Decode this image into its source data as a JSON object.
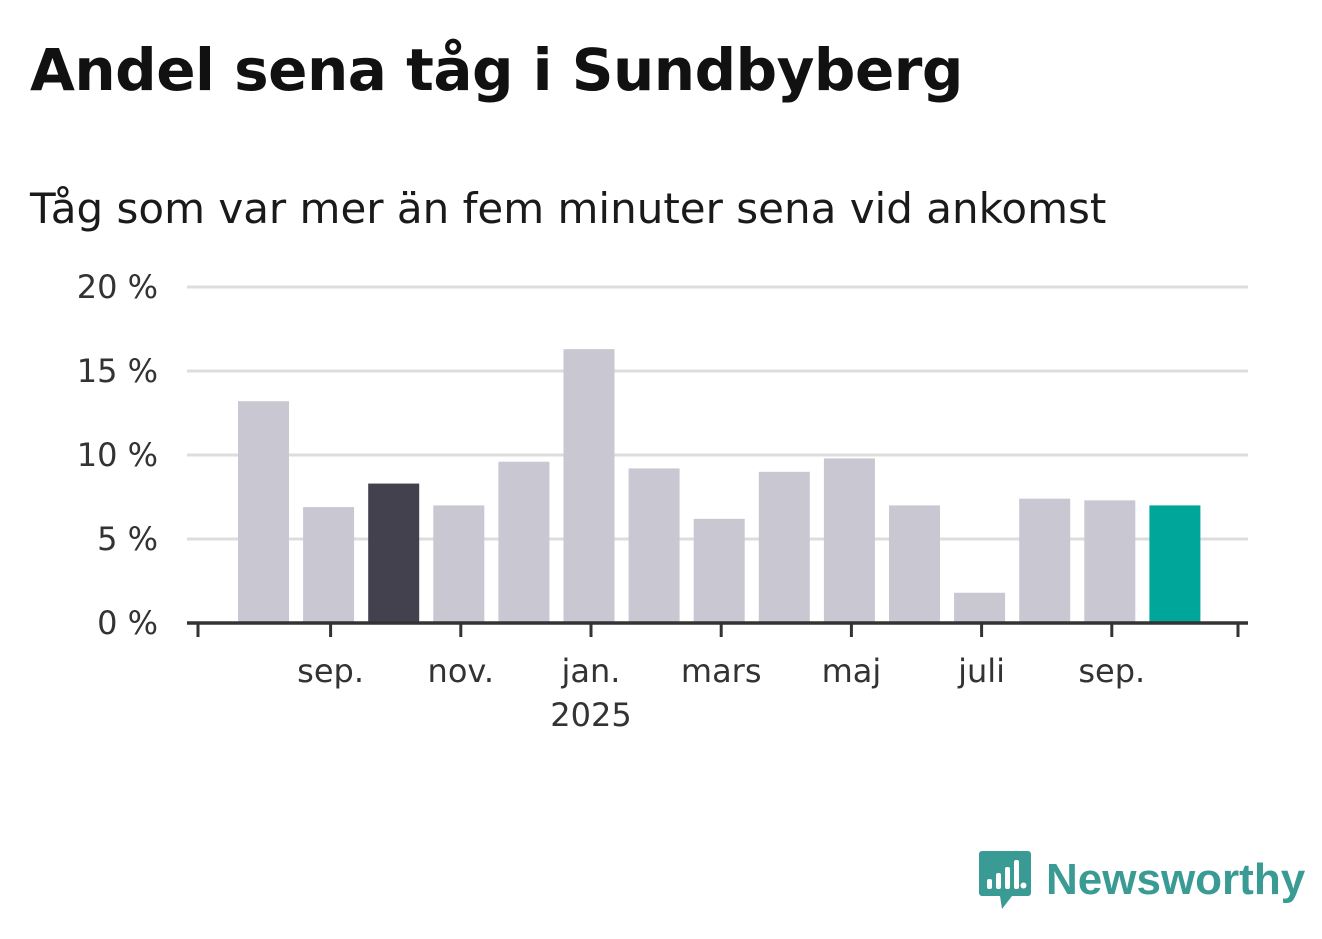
{
  "title": "Andel sena tåg i Sundbyberg",
  "subtitle": "Tåg som var mer än fem minuter sena vid ankomst",
  "brand": {
    "name": "Newsworthy",
    "icon": "newsworthy-logo-icon",
    "color": "#3a9a94"
  },
  "colors": {
    "default_bar": "#c8c7d2",
    "highlight_bar": "#42414d",
    "current_bar": "#00a69a",
    "grid": "#dddddd",
    "axis": "#333333"
  },
  "chart_data": {
    "type": "bar",
    "title": "Andel sena tåg i Sundbyberg",
    "subtitle": "Tåg som var mer än fem minuter sena vid ankomst",
    "categories": [
      "2024-08",
      "2024-09",
      "2024-10",
      "2024-11",
      "2024-12",
      "2025-01",
      "2025-02",
      "2025-03",
      "2025-04",
      "2025-05",
      "2025-06",
      "2025-07",
      "2025-08",
      "2025-09",
      "2025-10"
    ],
    "values": [
      13.2,
      6.9,
      8.3,
      7.0,
      9.6,
      16.3,
      9.2,
      6.2,
      9.0,
      9.8,
      7.0,
      1.8,
      7.4,
      7.3,
      7.0
    ],
    "highlight": {
      "2024-10": "highlight_bar",
      "2025-10": "current_bar"
    },
    "x_tick_labels": [
      {
        "category": "2024-09",
        "label": "sep.",
        "sublabel": ""
      },
      {
        "category": "2024-11",
        "label": "nov.",
        "sublabel": ""
      },
      {
        "category": "2025-01",
        "label": "jan.",
        "sublabel": "2025"
      },
      {
        "category": "2025-03",
        "label": "mars",
        "sublabel": ""
      },
      {
        "category": "2025-05",
        "label": "maj",
        "sublabel": ""
      },
      {
        "category": "2025-07",
        "label": "juli",
        "sublabel": ""
      },
      {
        "category": "2025-09",
        "label": "sep.",
        "sublabel": ""
      }
    ],
    "y_ticks": [
      0,
      5,
      10,
      15,
      20
    ],
    "y_tick_labels": [
      "0 %",
      "5 %",
      "10 %",
      "15 %",
      "20 %"
    ],
    "ylim": [
      0,
      20
    ],
    "xlabel": "",
    "ylabel": "",
    "grid": true,
    "legend": "none"
  }
}
